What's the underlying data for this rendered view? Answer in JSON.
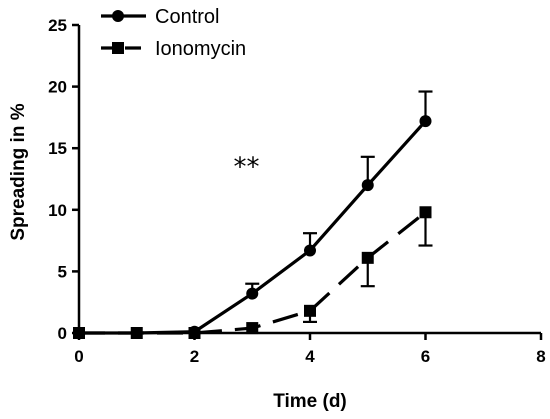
{
  "chart_data": {
    "type": "line",
    "xlabel": "Time (d)",
    "ylabel": "Spreading in %",
    "xlim": [
      0,
      8
    ],
    "ylim": [
      0,
      25
    ],
    "xticks": [
      0,
      2,
      4,
      6,
      8
    ],
    "yticks": [
      0,
      5,
      10,
      15,
      20,
      25
    ],
    "grid": false,
    "legend_position": "top-left",
    "series": [
      {
        "name": "Control",
        "marker": "circle",
        "line_style": "solid",
        "x": [
          0,
          1,
          2,
          3,
          4,
          5,
          6
        ],
        "y": [
          0,
          0,
          0.1,
          3.2,
          6.7,
          12.0,
          17.2
        ],
        "error_upper": [
          0,
          0,
          0,
          0.8,
          1.4,
          2.3,
          2.4
        ],
        "error_lower": [
          0,
          0,
          0,
          0,
          0,
          0,
          0
        ]
      },
      {
        "name": "Ionomycin",
        "marker": "square",
        "line_style": "dashed",
        "x": [
          0,
          1,
          2,
          3,
          4,
          5,
          6
        ],
        "y": [
          0,
          0,
          0,
          0.4,
          1.8,
          6.1,
          9.8
        ],
        "error_upper": [
          0,
          0,
          0,
          0,
          0,
          0,
          0
        ],
        "error_lower": [
          0,
          0,
          0,
          0,
          0.9,
          2.3,
          2.7
        ]
      }
    ],
    "annotations": [
      {
        "text": "**",
        "x": 2.9,
        "y": 12.8
      }
    ],
    "colors": {
      "line": "#000000",
      "background": "#ffffff"
    }
  }
}
